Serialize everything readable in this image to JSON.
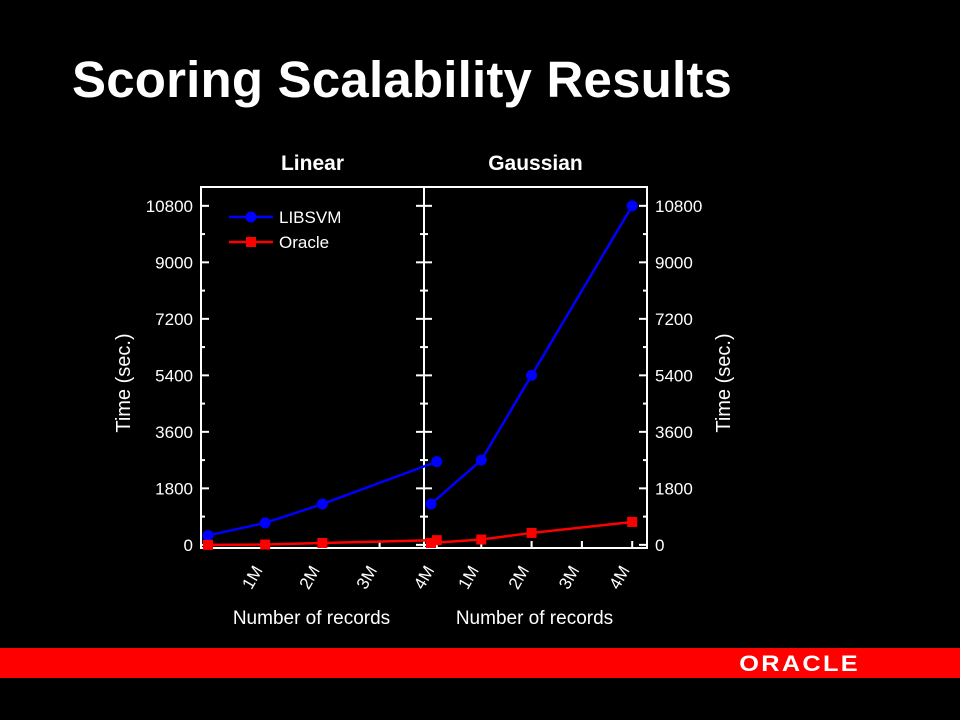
{
  "slide": {
    "title": "Scoring Scalability Results"
  },
  "footer": {
    "logo_text": "ORACLE"
  },
  "colors": {
    "background": "#000000",
    "libsvm": "#0000ff",
    "oracle": "#ff0000",
    "footer_bar": "#ff0000"
  },
  "chart_data": [
    {
      "type": "line",
      "title": "Linear",
      "xlabel": "Number of records",
      "ylabel": "Time (sec.)",
      "x_ticks": [
        "1M",
        "2M",
        "3M",
        "4M"
      ],
      "xlim": [
        0,
        4
      ],
      "ylim": [
        -100,
        11400
      ],
      "y_ticks": [
        0,
        1800,
        3600,
        5400,
        7200,
        9000,
        10800
      ],
      "legend_position": "top-left",
      "series": [
        {
          "name": "LIBSVM",
          "color": "#0000ff",
          "marker": "circle",
          "x": [
            0,
            1,
            2,
            4
          ],
          "y": [
            300,
            700,
            1300,
            2650
          ]
        },
        {
          "name": "Oracle",
          "color": "#ff0000",
          "marker": "square",
          "x": [
            0,
            1,
            2,
            4
          ],
          "y": [
            0,
            10,
            60,
            150
          ]
        }
      ]
    },
    {
      "type": "line",
      "title": "Gaussian",
      "xlabel": "Number of records",
      "ylabel": "Time (sec.)",
      "x_ticks": [
        "1M",
        "2M",
        "3M",
        "4M"
      ],
      "xlim": [
        0,
        4
      ],
      "ylim": [
        -100,
        11400
      ],
      "y_ticks": [
        0,
        1800,
        3600,
        5400,
        7200,
        9000,
        10800
      ],
      "series": [
        {
          "name": "LIBSVM",
          "color": "#0000ff",
          "marker": "circle",
          "x": [
            0,
            1,
            2,
            4
          ],
          "y": [
            1300,
            2700,
            5400,
            10800
          ]
        },
        {
          "name": "Oracle",
          "color": "#ff0000",
          "marker": "square",
          "x": [
            0,
            1,
            2,
            4
          ],
          "y": [
            60,
            170,
            380,
            730
          ]
        }
      ]
    }
  ]
}
